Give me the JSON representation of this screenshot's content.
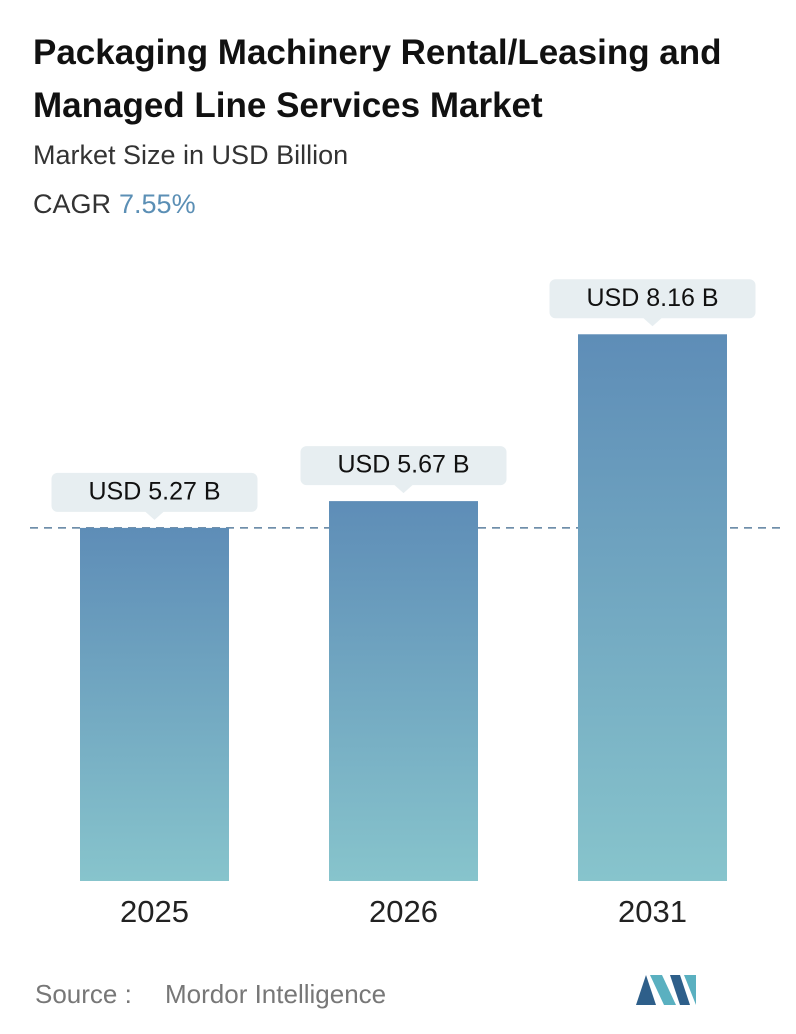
{
  "chart_data": {
    "type": "bar",
    "title": "Packaging Machinery Rental/Leasing and Managed Line Services Market",
    "subtitle": "Market Size in USD Billion",
    "cagr_label": "CAGR",
    "cagr": {
      "value": 7.55,
      "label": "7.55%"
    },
    "categories": [
      "2025",
      "2026",
      "2031"
    ],
    "values": [
      5.27,
      5.67,
      8.16
    ],
    "value_labels": [
      "USD 5.27 B",
      "USD 5.67 B",
      "USD 8.16 B"
    ],
    "source_label": "Source :",
    "source": "Mordor Intelligence"
  }
}
